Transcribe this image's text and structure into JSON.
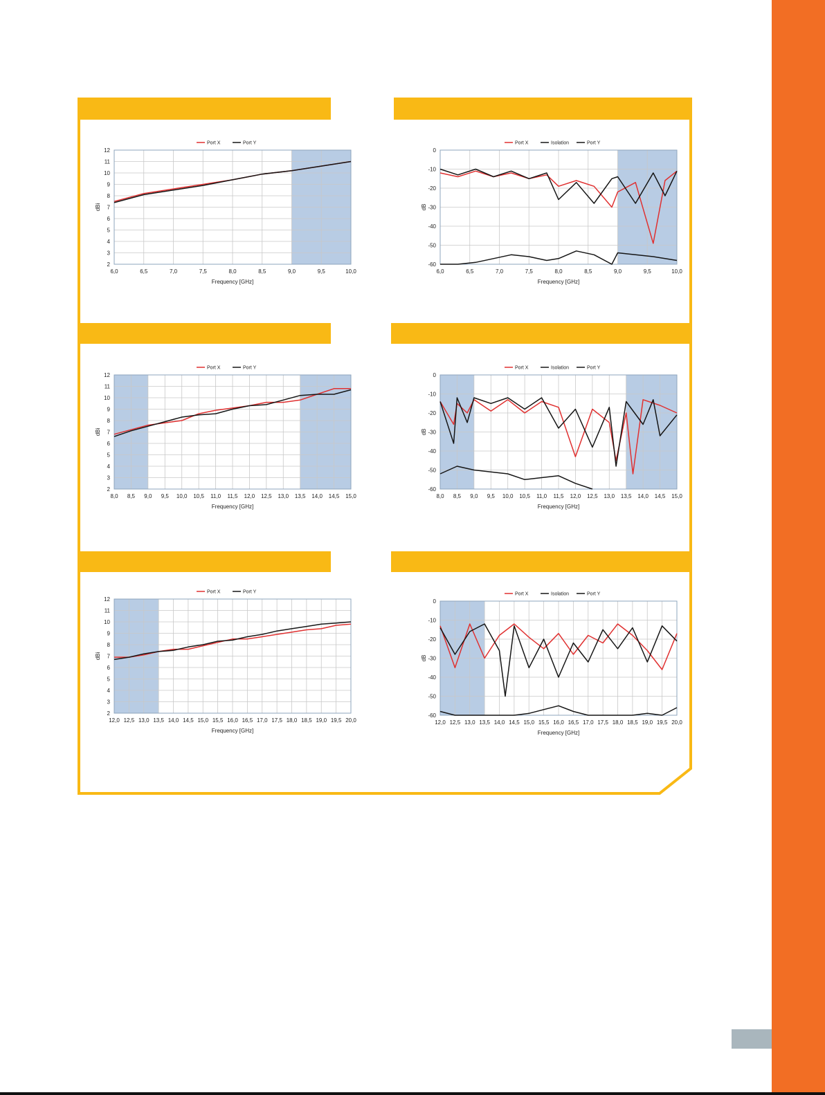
{
  "colors": {
    "frame": "#f9b915",
    "sidebar": "#f26e24",
    "page_tab": "#a9b6bd",
    "band_fill": "#b8cce4",
    "grid": "#c8c8c8",
    "port_x": "#e03030",
    "port_y": "#151515",
    "isolation": "#151515"
  },
  "chart_data": [
    {
      "type": "line",
      "title": "",
      "xlabel": "Frequency [GHz]",
      "ylabel": "dBi",
      "xlim": [
        6.0,
        10.0
      ],
      "ylim": [
        2,
        12
      ],
      "x_ticks": [
        "6,0",
        "6,5",
        "7,0",
        "7,5",
        "8,0",
        "8,5",
        "9,0",
        "9,5",
        "10,0"
      ],
      "y_ticks": [
        "2",
        "3",
        "4",
        "5",
        "6",
        "7",
        "8",
        "9",
        "10",
        "11",
        "12"
      ],
      "grid": true,
      "legend": "top-center",
      "shaded_bands": [
        [
          9.0,
          10.0
        ]
      ],
      "series": [
        {
          "name": "Port X",
          "color": "#e03030",
          "x": [
            6.0,
            6.5,
            7.0,
            7.5,
            8.0,
            8.5,
            9.0,
            9.5,
            10.0
          ],
          "y": [
            7.5,
            8.2,
            8.6,
            9.0,
            9.4,
            9.9,
            10.2,
            10.6,
            11.0
          ]
        },
        {
          "name": "Port Y",
          "color": "#151515",
          "x": [
            6.0,
            6.5,
            7.0,
            7.5,
            8.0,
            8.5,
            9.0,
            9.5,
            10.0
          ],
          "y": [
            7.4,
            8.1,
            8.5,
            8.9,
            9.4,
            9.9,
            10.2,
            10.6,
            11.0
          ]
        }
      ]
    },
    {
      "type": "line",
      "title": "",
      "xlabel": "Frequency [GHz]",
      "ylabel": "dB",
      "xlim": [
        6.0,
        10.0
      ],
      "ylim": [
        -60,
        0
      ],
      "x_ticks": [
        "6,0",
        "6,5",
        "7,0",
        "7,5",
        "8,0",
        "8,5",
        "9,0",
        "9,5",
        "10,0"
      ],
      "y_ticks": [
        "0",
        "-10",
        "-20",
        "-30",
        "-40",
        "-50",
        "-60"
      ],
      "grid": true,
      "legend": "top-center",
      "shaded_bands": [
        [
          9.0,
          10.0
        ]
      ],
      "series": [
        {
          "name": "Port X",
          "color": "#e03030",
          "x": [
            6.0,
            6.3,
            6.6,
            6.9,
            7.2,
            7.5,
            7.8,
            8.0,
            8.3,
            8.6,
            8.9,
            9.0,
            9.3,
            9.6,
            9.8,
            10.0
          ],
          "y": [
            -12,
            -14,
            -11,
            -14,
            -12,
            -15,
            -13,
            -19,
            -16,
            -19,
            -30,
            -22,
            -17,
            -49,
            -16,
            -11
          ]
        },
        {
          "name": "Isolation",
          "color": "#151515",
          "x": [
            6.0,
            6.3,
            6.6,
            6.9,
            7.2,
            7.5,
            7.8,
            8.0,
            8.3,
            8.6,
            8.9,
            9.0,
            9.3,
            9.6,
            9.8,
            10.0
          ],
          "y": [
            -60,
            -60,
            -59,
            -57,
            -55,
            -56,
            -58,
            -57,
            -53,
            -55,
            -60,
            -54,
            -55,
            -56,
            -57,
            -58
          ]
        },
        {
          "name": "Port Y",
          "color": "#151515",
          "x": [
            6.0,
            6.3,
            6.6,
            6.9,
            7.2,
            7.5,
            7.8,
            8.0,
            8.3,
            8.6,
            8.9,
            9.0,
            9.3,
            9.6,
            9.8,
            10.0
          ],
          "y": [
            -10,
            -13,
            -10,
            -14,
            -11,
            -15,
            -12,
            -26,
            -17,
            -28,
            -15,
            -14,
            -28,
            -12,
            -24,
            -11
          ]
        }
      ]
    },
    {
      "type": "line",
      "title": "",
      "xlabel": "Frequency [GHz]",
      "ylabel": "dBi",
      "xlim": [
        8.0,
        15.0
      ],
      "ylim": [
        2,
        12
      ],
      "x_ticks": [
        "8,0",
        "8,5",
        "9,0",
        "9,5",
        "10,0",
        "10,5",
        "11,0",
        "11,5",
        "12,0",
        "12,5",
        "13,0",
        "13,5",
        "14,0",
        "14,5",
        "15,0"
      ],
      "y_ticks": [
        "2",
        "3",
        "4",
        "5",
        "6",
        "7",
        "8",
        "9",
        "10",
        "11",
        "12"
      ],
      "grid": true,
      "legend": "top-center",
      "shaded_bands": [
        [
          8.0,
          9.0
        ],
        [
          13.5,
          15.0
        ]
      ],
      "series": [
        {
          "name": "Port X",
          "color": "#e03030",
          "x": [
            8.0,
            8.5,
            9.0,
            9.5,
            10.0,
            10.5,
            11.0,
            11.5,
            12.0,
            12.5,
            13.0,
            13.5,
            14.0,
            14.5,
            15.0
          ],
          "y": [
            6.8,
            7.2,
            7.6,
            7.8,
            8.0,
            8.6,
            8.9,
            9.1,
            9.3,
            9.6,
            9.6,
            9.8,
            10.3,
            10.8,
            10.8
          ]
        },
        {
          "name": "Port Y",
          "color": "#151515",
          "x": [
            8.0,
            8.5,
            9.0,
            9.5,
            10.0,
            10.5,
            11.0,
            11.5,
            12.0,
            12.5,
            13.0,
            13.5,
            14.0,
            14.5,
            15.0
          ],
          "y": [
            6.6,
            7.1,
            7.5,
            7.9,
            8.3,
            8.5,
            8.6,
            9.0,
            9.3,
            9.4,
            9.8,
            10.2,
            10.3,
            10.3,
            10.7
          ]
        }
      ]
    },
    {
      "type": "line",
      "title": "",
      "xlabel": "Frequency [GHz]",
      "ylabel": "dB",
      "xlim": [
        8.0,
        15.0
      ],
      "ylim": [
        -60,
        0
      ],
      "x_ticks": [
        "8,0",
        "8,5",
        "9,0",
        "9,5",
        "10,0",
        "10,5",
        "11,0",
        "11,5",
        "12,0",
        "12,5",
        "13,0",
        "13,5",
        "14,0",
        "14,5",
        "15,0"
      ],
      "y_ticks": [
        "0",
        "-10",
        "-20",
        "-30",
        "-40",
        "-50",
        "-60"
      ],
      "grid": true,
      "legend": "top-center",
      "shaded_bands": [
        [
          8.0,
          9.0
        ],
        [
          13.5,
          15.0
        ]
      ],
      "series": [
        {
          "name": "Port X",
          "color": "#e03030",
          "x": [
            8.0,
            8.4,
            8.5,
            8.8,
            9.0,
            9.5,
            10.0,
            10.5,
            11.0,
            11.5,
            12.0,
            12.5,
            13.0,
            13.2,
            13.5,
            13.7,
            14.0,
            14.5,
            15.0
          ],
          "y": [
            -14,
            -26,
            -15,
            -20,
            -13,
            -19,
            -13,
            -20,
            -14,
            -17,
            -43,
            -18,
            -25,
            -45,
            -20,
            -52,
            -13,
            -16,
            -20
          ]
        },
        {
          "name": "Isolation",
          "color": "#151515",
          "x": [
            8.0,
            8.5,
            9.0,
            9.5,
            10.0,
            10.5,
            11.0,
            11.5,
            12.0,
            12.5
          ],
          "y": [
            -52,
            -48,
            -50,
            -51,
            -52,
            -55,
            -54,
            -53,
            -57,
            -60
          ]
        },
        {
          "name": "Port Y",
          "color": "#151515",
          "x": [
            8.0,
            8.2,
            8.4,
            8.5,
            8.8,
            9.0,
            9.5,
            10.0,
            10.5,
            11.0,
            11.5,
            12.0,
            12.5,
            13.0,
            13.2,
            13.5,
            14.0,
            14.3,
            14.5,
            15.0
          ],
          "y": [
            -14,
            -25,
            -36,
            -12,
            -25,
            -12,
            -15,
            -12,
            -18,
            -12,
            -28,
            -18,
            -38,
            -17,
            -48,
            -14,
            -26,
            -13,
            -32,
            -21
          ]
        }
      ]
    },
    {
      "type": "line",
      "title": "",
      "xlabel": "Frequency [GHz]",
      "ylabel": "dBi",
      "xlim": [
        12.0,
        20.0
      ],
      "ylim": [
        2,
        12
      ],
      "x_ticks": [
        "12,0",
        "12,5",
        "13,0",
        "13,5",
        "14,0",
        "14,5",
        "15,0",
        "15,5",
        "16,0",
        "16,5",
        "17,0",
        "17,5",
        "18,0",
        "18,5",
        "19,0",
        "19,5",
        "20,0"
      ],
      "y_ticks": [
        "2",
        "3",
        "4",
        "5",
        "6",
        "7",
        "8",
        "9",
        "10",
        "11",
        "12"
      ],
      "grid": true,
      "legend": "top-center",
      "shaded_bands": [
        [
          12.0,
          13.5
        ]
      ],
      "series": [
        {
          "name": "Port X",
          "color": "#e03030",
          "x": [
            12.0,
            12.5,
            13.0,
            13.5,
            14.0,
            14.5,
            15.0,
            15.5,
            16.0,
            16.5,
            17.0,
            17.5,
            18.0,
            18.5,
            19.0,
            19.5,
            20.0
          ],
          "y": [
            6.9,
            6.9,
            7.1,
            7.4,
            7.6,
            7.6,
            7.9,
            8.2,
            8.5,
            8.5,
            8.7,
            8.9,
            9.1,
            9.3,
            9.4,
            9.7,
            9.8
          ]
        },
        {
          "name": "Port Y",
          "color": "#151515",
          "x": [
            12.0,
            12.5,
            13.0,
            13.5,
            14.0,
            14.5,
            15.0,
            15.5,
            16.0,
            16.5,
            17.0,
            17.5,
            18.0,
            18.5,
            19.0,
            19.5,
            20.0
          ],
          "y": [
            6.7,
            6.9,
            7.2,
            7.4,
            7.5,
            7.8,
            8.0,
            8.3,
            8.4,
            8.7,
            8.9,
            9.2,
            9.4,
            9.6,
            9.8,
            9.9,
            10.0
          ]
        }
      ]
    },
    {
      "type": "line",
      "title": "",
      "xlabel": "Frequency [GHz]",
      "ylabel": "dB",
      "xlim": [
        12.0,
        20.0
      ],
      "ylim": [
        -60,
        0
      ],
      "x_ticks": [
        "12,0",
        "12,5",
        "13,0",
        "13,5",
        "14,0",
        "14,5",
        "15,0",
        "15,5",
        "16,0",
        "16,5",
        "17,0",
        "17,5",
        "18,0",
        "18,5",
        "19,0",
        "19,5",
        "20,0"
      ],
      "y_ticks": [
        "0",
        "-10",
        "-20",
        "-30",
        "-40",
        "-50",
        "-60"
      ],
      "grid": true,
      "legend": "top-center",
      "shaded_bands": [
        [
          12.0,
          13.5
        ]
      ],
      "series": [
        {
          "name": "Port X",
          "color": "#e03030",
          "x": [
            12.0,
            12.5,
            13.0,
            13.5,
            14.0,
            14.5,
            15.0,
            15.5,
            16.0,
            16.5,
            17.0,
            17.5,
            18.0,
            18.5,
            19.0,
            19.5,
            20.0
          ],
          "y": [
            -13,
            -35,
            -12,
            -30,
            -18,
            -12,
            -19,
            -25,
            -17,
            -28,
            -18,
            -22,
            -12,
            -18,
            -26,
            -36,
            -17
          ]
        },
        {
          "name": "Isolation",
          "color": "#151515",
          "x": [
            12.0,
            12.5,
            13.0,
            13.5,
            14.0,
            14.5,
            15.0,
            15.5,
            16.0,
            16.5,
            17.0,
            17.5,
            18.0,
            18.5,
            19.0,
            19.5,
            20.0
          ],
          "y": [
            -58,
            -60,
            -60,
            -60,
            -60,
            -60,
            -59,
            -57,
            -55,
            -58,
            -60,
            -60,
            -60,
            -60,
            -59,
            -60,
            -56
          ]
        },
        {
          "name": "Port Y",
          "color": "#151515",
          "x": [
            12.0,
            12.5,
            13.0,
            13.5,
            14.0,
            14.2,
            14.5,
            15.0,
            15.5,
            16.0,
            16.5,
            17.0,
            17.5,
            18.0,
            18.5,
            19.0,
            19.5,
            20.0
          ],
          "y": [
            -14,
            -28,
            -16,
            -12,
            -26,
            -50,
            -13,
            -35,
            -20,
            -40,
            -22,
            -32,
            -15,
            -25,
            -14,
            -32,
            -13,
            -21
          ]
        }
      ]
    }
  ]
}
